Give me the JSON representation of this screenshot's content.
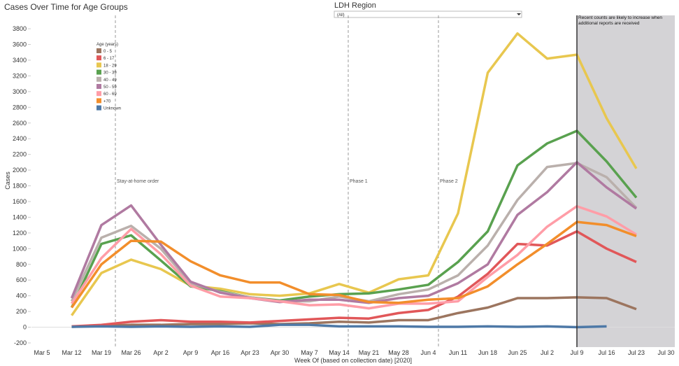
{
  "chart_data": {
    "type": "line",
    "title": "Cases Over Time for Age Groups",
    "filter_label": "LDH Region",
    "filter_value": "(All)",
    "y_label": "Cases",
    "x_label": "Week Of (based on collection date) [2020]",
    "legend_title": "Age (years)",
    "shade_note": "Recent counts are likely to increase when additional reports are received",
    "annotations": [
      "Stay-at-home order",
      "Phase 1",
      "Phase 2"
    ],
    "categories": [
      "Mar 5",
      "Mar 12",
      "Mar 19",
      "Mar 26",
      "Apr 2",
      "Apr 9",
      "Apr 16",
      "Apr 23",
      "Apr 30",
      "May 7",
      "May 14",
      "May 21",
      "May 28",
      "Jun 4",
      "Jun 11",
      "Jun 18",
      "Jun 25",
      "Jul 2",
      "Jul 9",
      "Jul 16",
      "Jul 23",
      "Jul 30"
    ],
    "ylim": [
      -200,
      3970
    ],
    "yticks": [
      -200,
      0,
      200,
      400,
      600,
      800,
      1000,
      1200,
      1400,
      1600,
      1800,
      2000,
      2200,
      2400,
      2600,
      2800,
      3000,
      3200,
      3400,
      3600,
      3800
    ],
    "series": [
      {
        "name": "0 - 5",
        "color": "#9c755f",
        "values": [
          null,
          5,
          20,
          30,
          30,
          40,
          40,
          50,
          40,
          50,
          70,
          60,
          90,
          90,
          180,
          250,
          370,
          370,
          380,
          370,
          230,
          null
        ]
      },
      {
        "name": "6 - 17",
        "color": "#e15759",
        "values": [
          null,
          10,
          30,
          70,
          90,
          70,
          70,
          60,
          80,
          100,
          120,
          110,
          180,
          220,
          390,
          680,
          1060,
          1040,
          1220,
          1000,
          830,
          null
        ]
      },
      {
        "name": "18 - 29",
        "color": "#e8c74f",
        "values": [
          null,
          150,
          690,
          860,
          740,
          530,
          490,
          420,
          400,
          430,
          550,
          440,
          610,
          660,
          1450,
          3240,
          3740,
          3420,
          3470,
          2660,
          2020,
          null
        ]
      },
      {
        "name": "30 - 39",
        "color": "#59a14f",
        "values": [
          null,
          250,
          1060,
          1170,
          850,
          520,
          460,
          380,
          340,
          390,
          420,
          430,
          480,
          540,
          830,
          1220,
          2060,
          2340,
          2500,
          2110,
          1650,
          null
        ]
      },
      {
        "name": "40 - 49",
        "color": "#bab0ac",
        "values": [
          null,
          330,
          1140,
          1290,
          1000,
          560,
          450,
          380,
          330,
          330,
          390,
          330,
          420,
          480,
          660,
          1040,
          1620,
          2040,
          2090,
          1910,
          1520,
          null
        ]
      },
      {
        "name": "50 - 59",
        "color": "#b07aa1",
        "values": [
          null,
          370,
          1300,
          1550,
          1050,
          580,
          440,
          370,
          320,
          350,
          350,
          310,
          370,
          400,
          560,
          800,
          1430,
          1720,
          2100,
          1780,
          1510,
          null
        ]
      },
      {
        "name": "60 - 69",
        "color": "#ff9da7",
        "values": [
          null,
          300,
          880,
          1250,
          930,
          530,
          390,
          370,
          330,
          280,
          290,
          240,
          300,
          300,
          330,
          640,
          920,
          1280,
          1540,
          1410,
          1180,
          null
        ]
      },
      {
        "name": "+70",
        "color": "#f28e2b",
        "values": [
          null,
          250,
          800,
          1100,
          1090,
          840,
          660,
          570,
          570,
          420,
          410,
          320,
          310,
          350,
          370,
          520,
          800,
          1060,
          1340,
          1300,
          1160,
          null
        ]
      },
      {
        "name": "Unknown",
        "color": "#4e79a7",
        "values": [
          null,
          5,
          10,
          5,
          10,
          5,
          10,
          5,
          30,
          30,
          10,
          10,
          10,
          5,
          5,
          10,
          5,
          10,
          0,
          10,
          null,
          null
        ]
      }
    ]
  }
}
